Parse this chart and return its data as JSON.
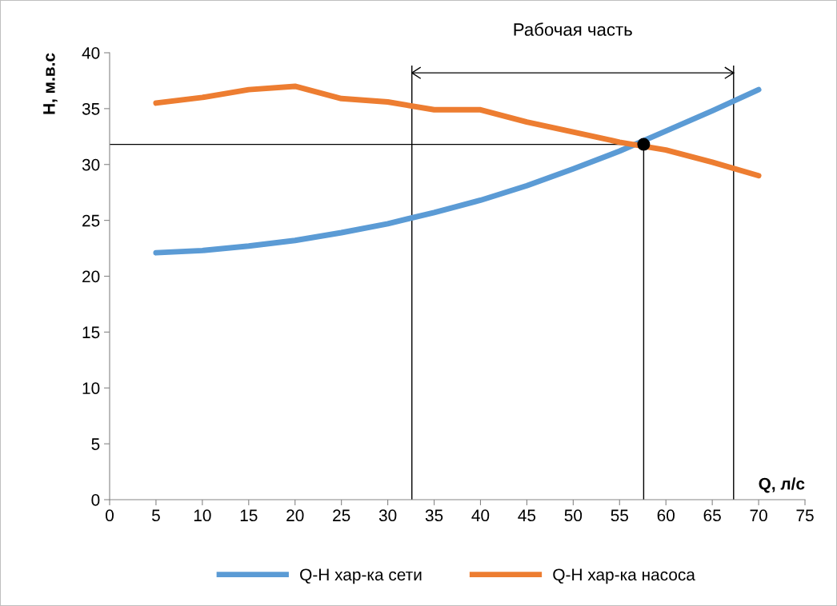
{
  "chart_data": {
    "type": "line",
    "xlabel": "Q, л/с",
    "ylabel": "H, м.в.с",
    "x": [
      5,
      10,
      15,
      20,
      25,
      30,
      35,
      40,
      45,
      50,
      55,
      60,
      65,
      70
    ],
    "series": [
      {
        "name": "Q-H хар-ка сети",
        "color": "#5b9bd5",
        "values": [
          22.1,
          22.3,
          22.7,
          23.2,
          23.9,
          24.7,
          25.7,
          26.8,
          28.1,
          29.6,
          31.2,
          33.0,
          34.8,
          36.7
        ]
      },
      {
        "name": "Q-H хар-ка насоса",
        "color": "#ed7d31",
        "values": [
          35.5,
          36.0,
          36.7,
          37.0,
          35.9,
          35.6,
          34.9,
          34.9,
          33.8,
          32.9,
          32.0,
          31.3,
          30.2,
          29.0
        ]
      },
      {
        "type": "scatter",
        "color": "#000000",
        "x": [
          57.6
        ],
        "values": [
          31.8
        ],
        "marker": "circle"
      }
    ],
    "ref_lines": [
      {
        "axis": "x",
        "value": 32.6,
        "color": "#000000"
      },
      {
        "axis": "x",
        "value": 57.6,
        "color": "#000000"
      },
      {
        "axis": "x",
        "value": 67.3,
        "color": "#000000"
      },
      {
        "axis": "y",
        "value": 31.8,
        "color": "#000000"
      },
      {
        "axis": "y",
        "value": 38.2,
        "color": "#000000",
        "label": "Рабочая часть"
      }
    ],
    "xlim": [
      0,
      75
    ],
    "xticks": [
      0,
      5,
      10,
      15,
      20,
      25,
      30,
      35,
      40,
      45,
      50,
      55,
      60,
      65,
      70,
      75
    ],
    "ylim": [
      0,
      40
    ],
    "yticks": [
      0,
      5,
      10,
      15,
      20,
      25,
      30,
      35,
      40
    ],
    "grid": false,
    "legend": "bottom",
    "marker": "none",
    "line_style": "solid"
  }
}
